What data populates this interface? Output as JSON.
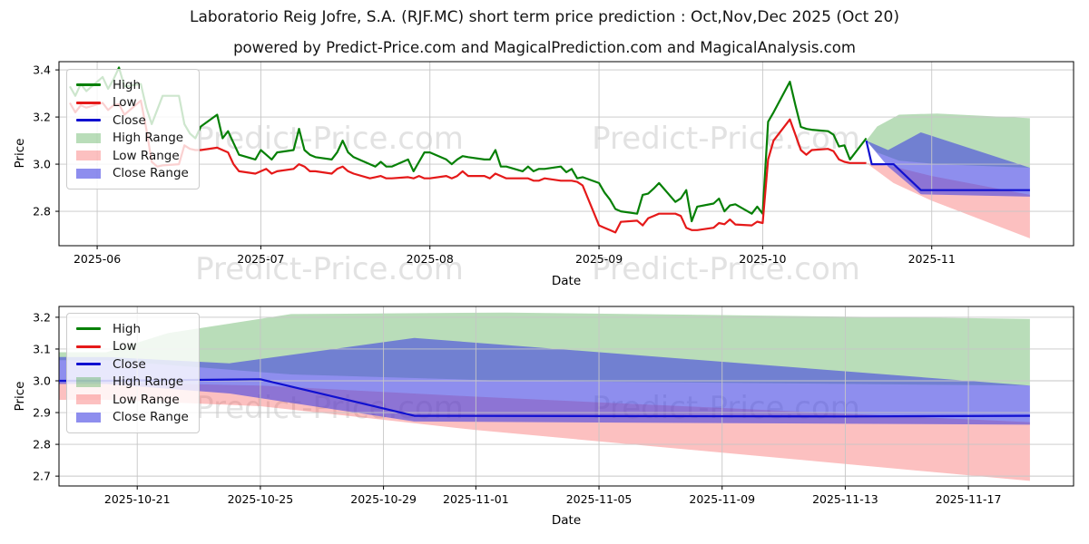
{
  "header": {
    "title": "Laboratorio Reig Jofre, S.A. (RJF.MC) short term price prediction : Oct,Nov,Dec 2025 (Oct 20)",
    "subtitle": "powered by Predict-Price.com and MagicalPrediction.com and MagicalAnalysis.com"
  },
  "watermark": {
    "text": "Predict-Price.com",
    "color": "#c7c7c7"
  },
  "colors": {
    "high_line": "#068006",
    "low_line": "#e51919",
    "close_line": "#1010d0",
    "high_range_fill": "rgba(80,170,80,0.40)",
    "low_range_fill": "rgba(246,90,90,0.38)",
    "close_range_fill": "rgba(60,60,225,0.58)",
    "grid": "#c6c6c6",
    "spine": "#000000"
  },
  "legend": {
    "items": [
      {
        "label": "High",
        "swatch": "line",
        "color": "#068006"
      },
      {
        "label": "Low",
        "swatch": "line",
        "color": "#e51919"
      },
      {
        "label": "Close",
        "swatch": "line",
        "color": "#1010d0"
      },
      {
        "label": "High Range",
        "swatch": "patch",
        "color": "rgba(80,170,80,0.40)"
      },
      {
        "label": "Low Range",
        "swatch": "patch",
        "color": "rgba(246,90,90,0.38)"
      },
      {
        "label": "Close Range",
        "swatch": "patch",
        "color": "rgba(60,60,225,0.58)"
      }
    ]
  },
  "chart_data": [
    {
      "name": "history-and-prediction-chart",
      "type": "line",
      "xlabel": "Date",
      "ylabel": "Price",
      "x_domain": [
        "2025-05-25",
        "2025-11-27"
      ],
      "ylim": [
        2.654,
        3.435
      ],
      "grid": true,
      "legend_position": "upper left",
      "x_ticks": [
        "2025-06-01",
        "2025-07-01",
        "2025-08-01",
        "2025-09-01",
        "2025-10-01",
        "2025-11-01"
      ],
      "x_tick_labels": [
        "2025-06",
        "2025-07",
        "2025-08",
        "2025-09",
        "2025-10",
        "2025-11"
      ],
      "y_ticks": [
        2.8,
        3.0,
        3.2,
        3.4
      ],
      "y_tick_labels": [
        "2.8",
        "3.0",
        "3.2",
        "3.4"
      ],
      "extend_left": false,
      "bands": [
        {
          "name": "high-range-band",
          "color": "rgba(80,170,80,0.40)",
          "points": [
            [
              "2025-10-20",
              3.1,
              3.1
            ],
            [
              "2025-10-22",
              3.05,
              3.16
            ],
            [
              "2025-10-26",
              3.015,
              3.21
            ],
            [
              "2025-11-02",
              3.0,
              3.215
            ],
            [
              "2025-11-19",
              2.985,
              3.195
            ]
          ]
        },
        {
          "name": "low-range-band",
          "color": "rgba(246,90,90,0.38)",
          "points": [
            [
              "2025-10-20",
              3.005,
              3.005
            ],
            [
              "2025-10-25",
              2.92,
              2.99
            ],
            [
              "2025-11-01",
              2.845,
              2.95
            ],
            [
              "2025-11-19",
              2.685,
              2.87
            ]
          ]
        },
        {
          "name": "close-range-band",
          "color": "rgba(60,60,225,0.58)",
          "points": [
            [
              "2025-10-20",
              3.1,
              3.1
            ],
            [
              "2025-10-24",
              2.99,
              3.06
            ],
            [
              "2025-10-30",
              2.872,
              3.135
            ],
            [
              "2025-11-19",
              2.862,
              2.985
            ]
          ]
        }
      ],
      "lines": [
        {
          "name": "high-line",
          "color": "#068006",
          "dates": [
            "2025-05-27",
            "2025-05-28",
            "2025-05-29",
            "2025-05-30",
            "2025-06-02",
            "2025-06-03",
            "2025-06-04",
            "2025-06-05",
            "2025-06-06",
            "2025-06-09",
            "2025-06-10",
            "2025-06-11",
            "2025-06-12",
            "2025-06-13",
            "2025-06-16",
            "2025-06-17",
            "2025-06-18",
            "2025-06-19",
            "2025-06-20",
            "2025-06-23",
            "2025-06-24",
            "2025-06-25",
            "2025-06-26",
            "2025-06-27",
            "2025-06-30",
            "2025-07-01",
            "2025-07-02",
            "2025-07-03",
            "2025-07-04",
            "2025-07-07",
            "2025-07-08",
            "2025-07-09",
            "2025-07-10",
            "2025-07-11",
            "2025-07-14",
            "2025-07-15",
            "2025-07-16",
            "2025-07-17",
            "2025-07-18",
            "2025-07-21",
            "2025-07-22",
            "2025-07-23",
            "2025-07-24",
            "2025-07-25",
            "2025-07-28",
            "2025-07-29",
            "2025-07-30",
            "2025-07-31",
            "2025-08-01",
            "2025-08-04",
            "2025-08-05",
            "2025-08-06",
            "2025-08-07",
            "2025-08-08",
            "2025-08-11",
            "2025-08-12",
            "2025-08-13",
            "2025-08-14",
            "2025-08-15",
            "2025-08-18",
            "2025-08-19",
            "2025-08-20",
            "2025-08-21",
            "2025-08-22",
            "2025-08-25",
            "2025-08-26",
            "2025-08-27",
            "2025-08-28",
            "2025-08-29",
            "2025-09-01",
            "2025-09-02",
            "2025-09-03",
            "2025-09-04",
            "2025-09-05",
            "2025-09-08",
            "2025-09-09",
            "2025-09-10",
            "2025-09-11",
            "2025-09-12",
            "2025-09-15",
            "2025-09-16",
            "2025-09-17",
            "2025-09-18",
            "2025-09-19",
            "2025-09-22",
            "2025-09-23",
            "2025-09-24",
            "2025-09-25",
            "2025-09-26",
            "2025-09-29",
            "2025-09-30",
            "2025-10-01",
            "2025-10-02",
            "2025-10-03",
            "2025-10-06",
            "2025-10-07",
            "2025-10-08",
            "2025-10-09",
            "2025-10-10",
            "2025-10-13",
            "2025-10-14",
            "2025-10-15",
            "2025-10-16",
            "2025-10-17",
            "2025-10-20"
          ],
          "values": [
            3.33,
            3.29,
            3.34,
            3.31,
            3.37,
            3.32,
            3.36,
            3.41,
            3.33,
            3.34,
            3.24,
            3.17,
            3.23,
            3.29,
            3.29,
            3.17,
            3.13,
            3.11,
            3.16,
            3.21,
            3.11,
            3.14,
            3.09,
            3.04,
            3.02,
            3.06,
            3.04,
            3.02,
            3.05,
            3.06,
            3.15,
            3.06,
            3.04,
            3.03,
            3.02,
            3.05,
            3.1,
            3.05,
            3.03,
            3.0,
            2.99,
            3.01,
            2.99,
            2.99,
            3.02,
            2.97,
            3.01,
            3.05,
            3.05,
            3.02,
            3.0,
            3.02,
            3.034,
            3.03,
            3.02,
            3.02,
            3.06,
            2.99,
            2.99,
            2.97,
            2.99,
            2.97,
            2.98,
            2.98,
            2.99,
            2.966,
            2.98,
            2.94,
            2.945,
            2.92,
            2.88,
            2.85,
            2.81,
            2.8,
            2.79,
            2.87,
            2.875,
            2.896,
            2.92,
            2.84,
            2.855,
            2.89,
            2.758,
            2.82,
            2.833,
            2.854,
            2.8,
            2.825,
            2.83,
            2.79,
            2.82,
            2.79,
            3.18,
            3.22,
            3.35,
            3.25,
            3.158,
            3.15,
            3.146,
            3.14,
            3.125,
            3.075,
            3.08,
            3.02,
            3.11
          ]
        },
        {
          "name": "low-line",
          "color": "#e51919",
          "dates": [
            "2025-05-27",
            "2025-05-28",
            "2025-05-29",
            "2025-05-30",
            "2025-06-02",
            "2025-06-03",
            "2025-06-04",
            "2025-06-05",
            "2025-06-06",
            "2025-06-09",
            "2025-06-10",
            "2025-06-11",
            "2025-06-12",
            "2025-06-13",
            "2025-06-16",
            "2025-06-17",
            "2025-06-18",
            "2025-06-19",
            "2025-06-20",
            "2025-06-23",
            "2025-06-24",
            "2025-06-25",
            "2025-06-26",
            "2025-06-27",
            "2025-06-30",
            "2025-07-01",
            "2025-07-02",
            "2025-07-03",
            "2025-07-04",
            "2025-07-07",
            "2025-07-08",
            "2025-07-09",
            "2025-07-10",
            "2025-07-11",
            "2025-07-14",
            "2025-07-15",
            "2025-07-16",
            "2025-07-17",
            "2025-07-18",
            "2025-07-21",
            "2025-07-22",
            "2025-07-23",
            "2025-07-24",
            "2025-07-25",
            "2025-07-28",
            "2025-07-29",
            "2025-07-30",
            "2025-07-31",
            "2025-08-01",
            "2025-08-04",
            "2025-08-05",
            "2025-08-06",
            "2025-08-07",
            "2025-08-08",
            "2025-08-11",
            "2025-08-12",
            "2025-08-13",
            "2025-08-14",
            "2025-08-15",
            "2025-08-18",
            "2025-08-19",
            "2025-08-20",
            "2025-08-21",
            "2025-08-22",
            "2025-08-25",
            "2025-08-26",
            "2025-08-27",
            "2025-08-28",
            "2025-08-29",
            "2025-09-01",
            "2025-09-02",
            "2025-09-03",
            "2025-09-04",
            "2025-09-05",
            "2025-09-08",
            "2025-09-09",
            "2025-09-10",
            "2025-09-11",
            "2025-09-12",
            "2025-09-15",
            "2025-09-16",
            "2025-09-17",
            "2025-09-18",
            "2025-09-19",
            "2025-09-22",
            "2025-09-23",
            "2025-09-24",
            "2025-09-25",
            "2025-09-26",
            "2025-09-29",
            "2025-09-30",
            "2025-10-01",
            "2025-10-02",
            "2025-10-03",
            "2025-10-06",
            "2025-10-07",
            "2025-10-08",
            "2025-10-09",
            "2025-10-10",
            "2025-10-13",
            "2025-10-14",
            "2025-10-15",
            "2025-10-16",
            "2025-10-17",
            "2025-10-20"
          ],
          "values": [
            3.26,
            3.22,
            3.25,
            3.24,
            3.26,
            3.23,
            3.25,
            3.255,
            3.21,
            3.27,
            3.15,
            3.01,
            2.99,
            2.995,
            3.0,
            3.08,
            3.065,
            3.06,
            3.06,
            3.07,
            3.06,
            3.05,
            3.0,
            2.97,
            2.96,
            2.97,
            2.98,
            2.96,
            2.97,
            2.98,
            3.0,
            2.99,
            2.97,
            2.97,
            2.96,
            2.98,
            2.99,
            2.97,
            2.96,
            2.94,
            2.945,
            2.95,
            2.94,
            2.94,
            2.945,
            2.94,
            2.95,
            2.94,
            2.94,
            2.95,
            2.94,
            2.95,
            2.97,
            2.95,
            2.95,
            2.94,
            2.96,
            2.95,
            2.94,
            2.94,
            2.94,
            2.93,
            2.93,
            2.94,
            2.93,
            2.93,
            2.93,
            2.925,
            2.91,
            2.74,
            2.73,
            2.72,
            2.71,
            2.755,
            2.76,
            2.74,
            2.77,
            2.78,
            2.79,
            2.79,
            2.78,
            2.73,
            2.72,
            2.72,
            2.73,
            2.75,
            2.745,
            2.765,
            2.744,
            2.74,
            2.756,
            2.75,
            3.02,
            3.1,
            3.19,
            3.125,
            3.06,
            3.04,
            3.06,
            3.065,
            3.055,
            3.02,
            3.01,
            3.005,
            3.005
          ]
        },
        {
          "name": "close-prediction-line",
          "color": "#1010d0",
          "points": [
            [
              "2025-10-20",
              3.1
            ],
            [
              "2025-10-21",
              3.0
            ],
            [
              "2025-10-25",
              3.0
            ],
            [
              "2025-10-30",
              2.89
            ],
            [
              "2025-11-19",
              2.89
            ]
          ]
        }
      ]
    },
    {
      "name": "prediction-detail-chart",
      "type": "line",
      "xlabel": "Date",
      "ylabel": "Price",
      "x_domain": [
        "2025-10-18T11:00:00",
        "2025-11-20T10:00:00"
      ],
      "ylim": [
        2.669,
        3.234
      ],
      "grid": true,
      "legend_position": "upper left",
      "x_ticks": [
        "2025-10-21",
        "2025-10-25",
        "2025-10-29",
        "2025-11-01",
        "2025-11-05",
        "2025-11-09",
        "2025-11-13",
        "2025-11-17"
      ],
      "x_tick_labels": [
        "2025-10-21",
        "2025-10-25",
        "2025-10-29",
        "2025-11-01",
        "2025-11-05",
        "2025-11-09",
        "2025-11-13",
        "2025-11-17"
      ],
      "y_ticks": [
        2.7,
        2.8,
        2.9,
        3.0,
        3.1,
        3.2
      ],
      "y_tick_labels": [
        "2.7",
        "2.8",
        "2.9",
        "3.0",
        "3.1",
        "3.2"
      ],
      "extend_left": true,
      "bands": [
        {
          "name": "high-range-band",
          "color": "rgba(80,170,80,0.40)",
          "points": [
            [
              "2025-10-20",
              3.065,
              3.09
            ],
            [
              "2025-10-22",
              3.05,
              3.15
            ],
            [
              "2025-10-26",
              3.02,
              3.21
            ],
            [
              "2025-11-02",
              3.0,
              3.215
            ],
            [
              "2025-11-19",
              2.985,
              3.195
            ]
          ]
        },
        {
          "name": "low-range-band",
          "color": "rgba(246,90,90,0.38)",
          "points": [
            [
              "2025-10-20",
              2.94,
              2.995
            ],
            [
              "2025-10-25",
              2.92,
              2.985
            ],
            [
              "2025-11-01",
              2.845,
              2.95
            ],
            [
              "2025-11-19",
              2.685,
              2.87
            ]
          ]
        },
        {
          "name": "close-range-band",
          "color": "rgba(60,60,225,0.58)",
          "points": [
            [
              "2025-10-20",
              2.99,
              3.075
            ],
            [
              "2025-10-24",
              2.96,
              3.055
            ],
            [
              "2025-10-30",
              2.872,
              3.135
            ],
            [
              "2025-11-19",
              2.862,
              2.985
            ]
          ]
        }
      ],
      "lines": [
        {
          "name": "close-prediction-line",
          "color": "#1010d0",
          "points": [
            [
              "2025-10-20",
              3.0
            ],
            [
              "2025-10-25",
              3.005
            ],
            [
              "2025-10-30",
              2.89
            ],
            [
              "2025-11-13",
              2.888
            ],
            [
              "2025-11-19",
              2.89
            ]
          ]
        }
      ]
    }
  ]
}
